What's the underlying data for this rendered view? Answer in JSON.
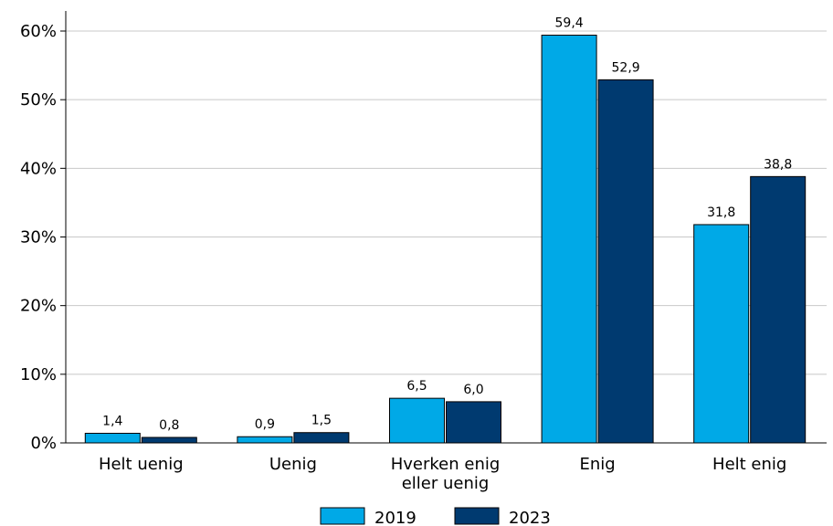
{
  "chart_data": {
    "type": "bar",
    "categories": [
      [
        "Helt uenig"
      ],
      [
        "Uenig"
      ],
      [
        "Hverken enig",
        "eller uenig"
      ],
      [
        "Enig"
      ],
      [
        "Helt enig"
      ]
    ],
    "series": [
      {
        "name": "2019",
        "color": "#00a9e7",
        "values": [
          1.4,
          0.9,
          6.5,
          59.4,
          31.8
        ],
        "labels": [
          "1,4",
          "0,9",
          "6,5",
          "59,4",
          "31,8"
        ]
      },
      {
        "name": "2023",
        "color": "#003a70",
        "values": [
          0.8,
          1.5,
          6.0,
          52.9,
          38.8
        ],
        "labels": [
          "0,8",
          "1,5",
          "6,0",
          "52,9",
          "38,8"
        ]
      }
    ],
    "ylim": [
      0,
      60
    ],
    "yticks": [
      0,
      10,
      20,
      30,
      40,
      50,
      60
    ],
    "ytick_labels": [
      "0%",
      "10%",
      "20%",
      "30%",
      "40%",
      "50%",
      "60%"
    ],
    "grid": true,
    "legend_position": "bottom-center"
  }
}
